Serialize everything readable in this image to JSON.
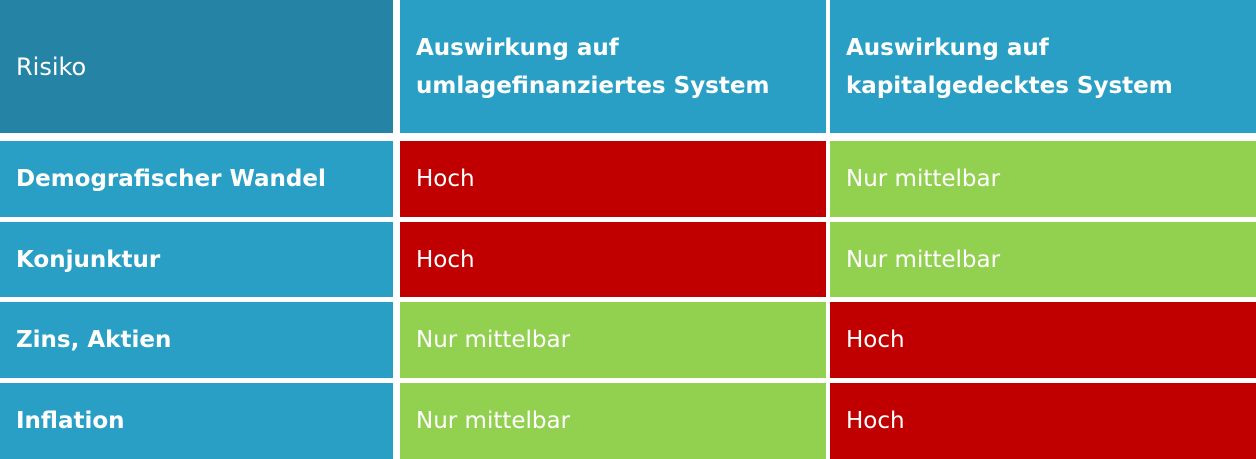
{
  "table": {
    "header": [
      [
        "Risiko"
      ],
      [
        "Auswirkung auf",
        "umlagefinanziertes System"
      ],
      [
        "Auswirkung auf",
        "kapitalgedecktes System"
      ]
    ],
    "rows": [
      [
        "Demografischer Wandel",
        "Hoch",
        "Nur mittelbar"
      ],
      [
        "Konjunktur",
        "Hoch",
        "Nur mittelbar"
      ],
      [
        "Zins, Aktien",
        "Nur mittelbar",
        "Hoch"
      ],
      [
        "Inflation",
        "Nur mittelbar",
        "Hoch"
      ]
    ]
  }
}
